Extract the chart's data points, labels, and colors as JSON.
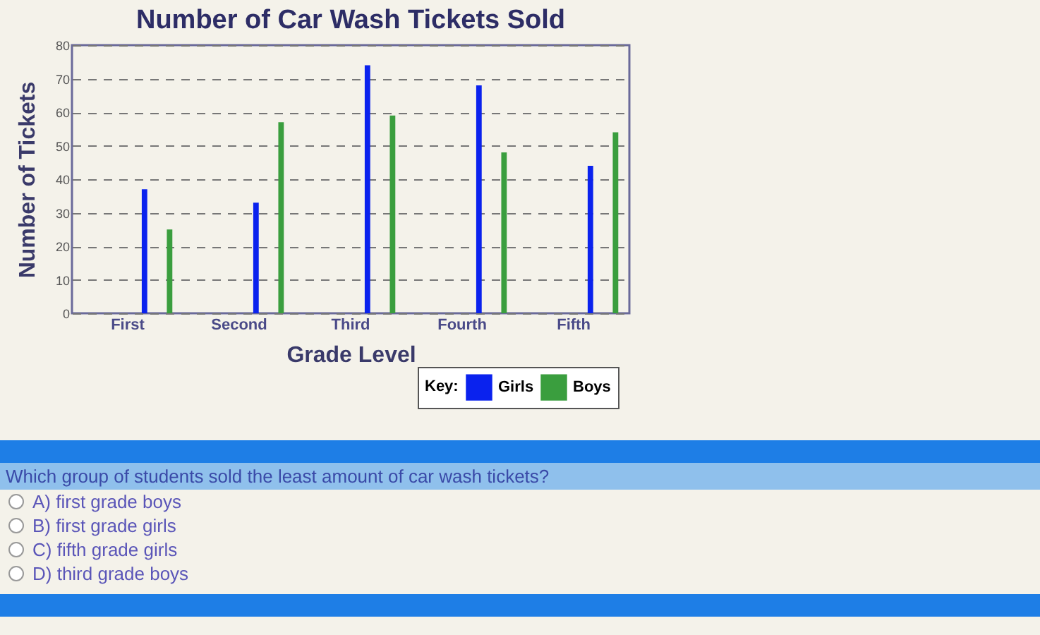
{
  "chart_data": {
    "type": "bar",
    "title": "Number of Car Wash Tickets Sold",
    "xlabel": "Grade Level",
    "ylabel": "Number of Tickets",
    "legend_title": "Key:",
    "categories": [
      "First",
      "Second",
      "Third",
      "Fourth",
      "Fifth"
    ],
    "series": [
      {
        "name": "Girls",
        "color": "#0a22ee",
        "values": [
          37,
          33,
          74,
          68,
          44
        ]
      },
      {
        "name": "Boys",
        "color": "#3a9e3e",
        "values": [
          25,
          57,
          59,
          48,
          54
        ]
      }
    ],
    "ylim": [
      0,
      80
    ],
    "yticks": [
      0,
      10,
      20,
      30,
      40,
      50,
      60,
      70,
      80
    ],
    "grid": "y",
    "legend": "bottom right",
    "annotations": [
      "Which group of students sold the least amount of car wash tickets?",
      "A) first grade boys",
      "B) first grade girls",
      "C) fifth grade girls",
      "D) third grade boys"
    ]
  }
}
